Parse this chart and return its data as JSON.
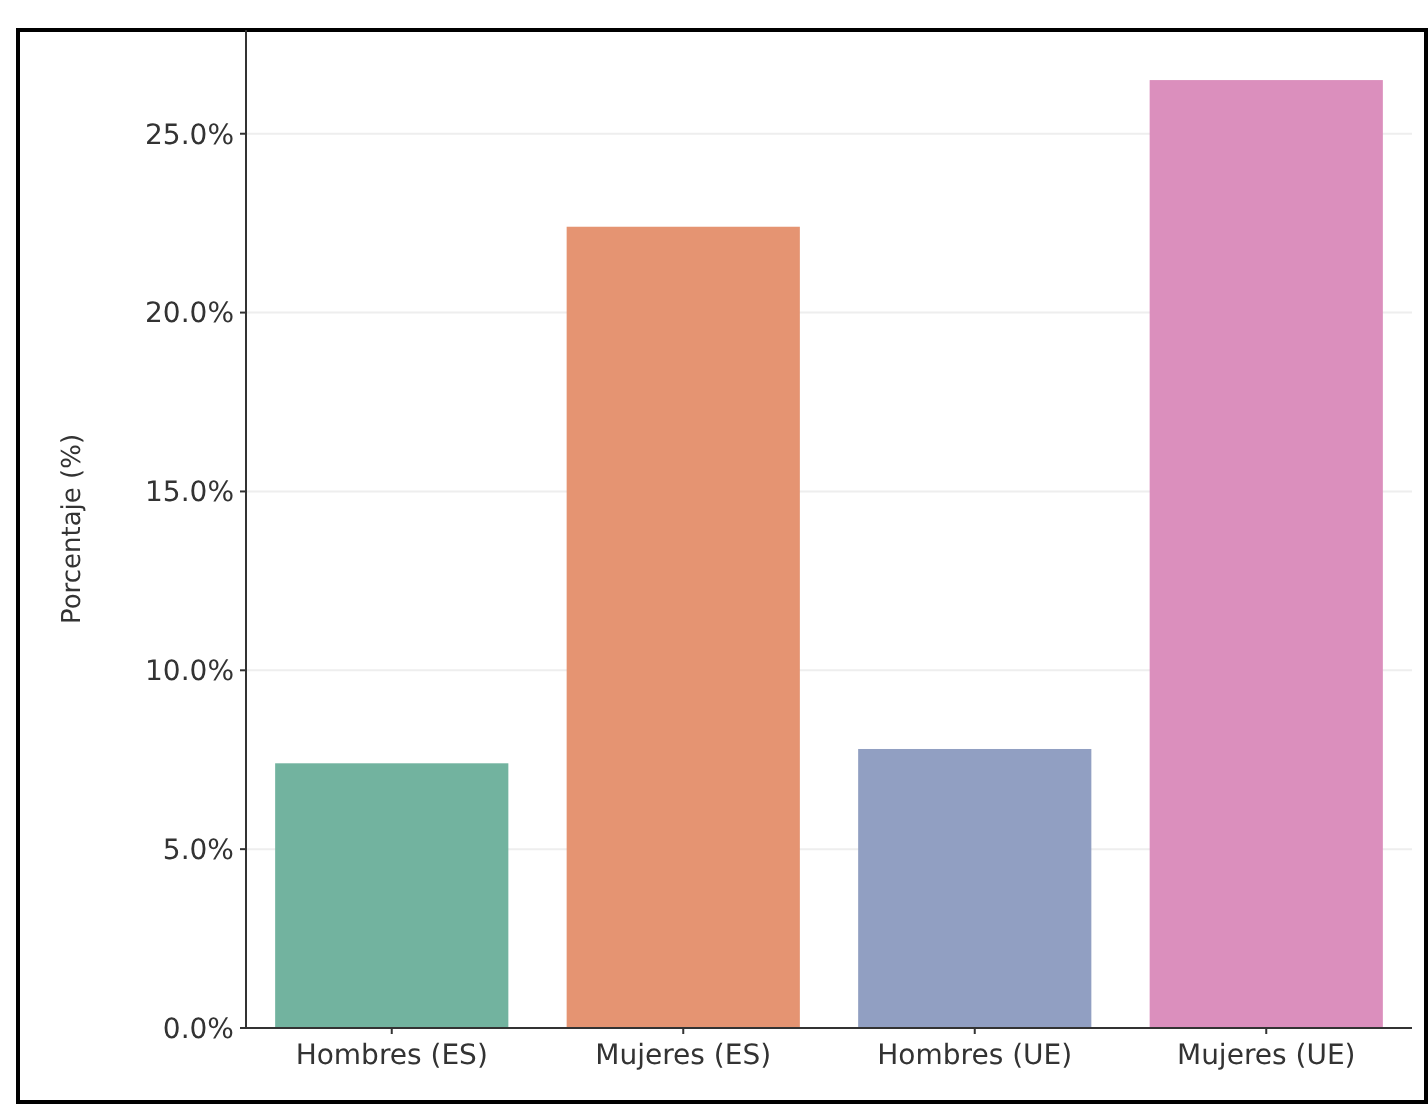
{
  "chart_data": {
    "type": "bar",
    "ylabel": "Porcentaje (%)",
    "categories": [
      "Hombres (ES)",
      "Mujeres (ES)",
      "Hombres (UE)",
      "Mujeres (UE)"
    ],
    "values": [
      7.4,
      22.4,
      7.8,
      26.5
    ],
    "colors": [
      "#72b39f",
      "#e59472",
      "#919fc2",
      "#db8fbd"
    ],
    "ylim": [
      0,
      27.9
    ],
    "yticks": [
      {
        "value": 0,
        "label": "0.0%"
      },
      {
        "value": 5,
        "label": "5.0%"
      },
      {
        "value": 10,
        "label": "10.0%"
      },
      {
        "value": 15,
        "label": "15.0%"
      },
      {
        "value": 20,
        "label": "20.0%"
      },
      {
        "value": 25,
        "label": "25.0%"
      }
    ],
    "grid": "y"
  }
}
